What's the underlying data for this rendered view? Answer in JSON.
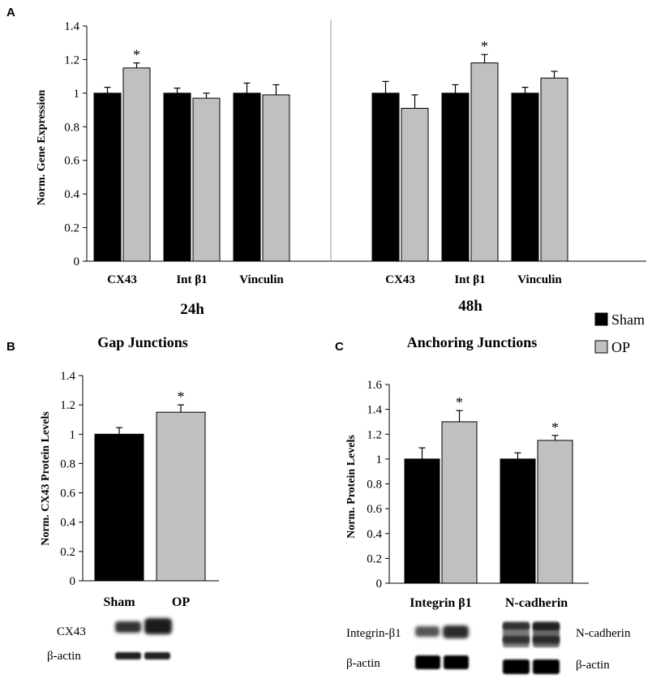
{
  "panels": {
    "A": "A",
    "B": "B",
    "C": "C"
  },
  "legend": {
    "items": [
      {
        "label": "Sham",
        "color": "#000000"
      },
      {
        "label": "OP",
        "color": "#c0c0c0"
      }
    ]
  },
  "colors": {
    "sham": "#000000",
    "op": "#c0c0c0",
    "axis": "#000000",
    "divider": "#999999"
  },
  "chart_data": [
    {
      "id": "A",
      "type": "bar",
      "ylabel": "Norm. Gene Expression",
      "ylim": [
        0,
        1.4
      ],
      "yticks": [
        "0",
        "0.2",
        "0.4",
        "0.6",
        "0.8",
        "1",
        "1.2",
        "1.4"
      ],
      "groups": [
        {
          "title": "24h",
          "categories": [
            "CX43",
            "Int β1",
            "Vinculin"
          ],
          "series": [
            {
              "name": "Sham",
              "values": [
                1.0,
                1.0,
                1.0
              ],
              "errors": [
                0.035,
                0.03,
                0.06
              ]
            },
            {
              "name": "OP",
              "values": [
                1.15,
                0.97,
                0.99
              ],
              "errors": [
                0.03,
                0.03,
                0.06
              ]
            }
          ],
          "significance": [
            {
              "category": 0,
              "series": 1,
              "label": "*"
            }
          ]
        },
        {
          "title": "48h",
          "categories": [
            "CX43",
            "Int β1",
            "Vinculin"
          ],
          "series": [
            {
              "name": "Sham",
              "values": [
                1.0,
                1.0,
                1.0
              ],
              "errors": [
                0.07,
                0.05,
                0.035
              ]
            },
            {
              "name": "OP",
              "values": [
                0.91,
                1.18,
                1.09
              ],
              "errors": [
                0.08,
                0.05,
                0.04
              ]
            }
          ],
          "significance": [
            {
              "category": 1,
              "series": 1,
              "label": "*"
            }
          ]
        }
      ]
    },
    {
      "id": "B",
      "type": "bar",
      "title": "Gap Junctions",
      "ylabel": "Norm. CX43 Protein Levels",
      "ylim": [
        0,
        1.4
      ],
      "yticks": [
        "0",
        "0.2",
        "0.4",
        "0.6",
        "0.8",
        "1",
        "1.2",
        "1.4"
      ],
      "categories": [
        "Sham",
        "OP"
      ],
      "values": [
        1.0,
        1.15
      ],
      "errors": [
        0.045,
        0.05
      ],
      "significance": [
        {
          "index": 1,
          "label": "*"
        }
      ]
    },
    {
      "id": "C",
      "type": "bar",
      "title": "Anchoring Junctions",
      "ylabel": "Norm. Protein Levels",
      "ylim": [
        0,
        1.6
      ],
      "yticks": [
        "0",
        "0.2",
        "0.4",
        "0.6",
        "0.8",
        "1",
        "1.2",
        "1.4",
        "1.6"
      ],
      "categories": [
        "Integrin β1",
        "N-cadherin"
      ],
      "series": [
        {
          "name": "Sham",
          "values": [
            1.0,
            1.0
          ],
          "errors": [
            0.09,
            0.05
          ]
        },
        {
          "name": "OP",
          "values": [
            1.3,
            1.15
          ],
          "errors": [
            0.09,
            0.04
          ]
        }
      ],
      "significance": [
        {
          "category": 0,
          "series": 1,
          "label": "*"
        },
        {
          "category": 1,
          "series": 1,
          "label": "*"
        }
      ]
    }
  ],
  "blots": {
    "B": [
      {
        "label": "CX43"
      },
      {
        "label": "β-actin"
      }
    ],
    "C_left": [
      {
        "label": "Integrin-β1"
      },
      {
        "label": "β-actin"
      }
    ],
    "C_right": [
      {
        "label": "N-cadherin"
      },
      {
        "label": "β-actin"
      }
    ]
  }
}
